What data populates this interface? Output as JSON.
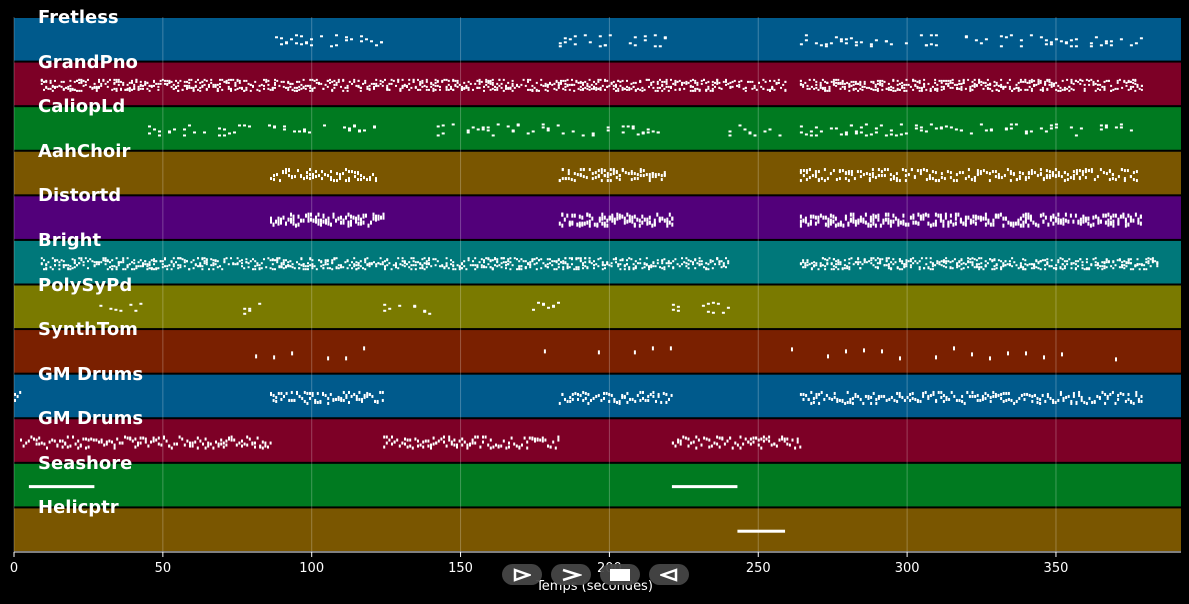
{
  "chart_data": {
    "type": "piano-roll",
    "xlabel": "Temps (secondes)",
    "xlim": [
      0,
      392
    ],
    "xticks": [
      0,
      50,
      100,
      150,
      200,
      250,
      300,
      350
    ],
    "grid": true,
    "tracks": [
      {
        "name": "Fretless",
        "color": "#005a8c",
        "segments": [
          [
            86,
            124
          ],
          [
            183,
            221
          ],
          [
            264,
            379
          ]
        ],
        "density": "sparse"
      },
      {
        "name": "GrandPno",
        "color": "#7d0026",
        "segments": [
          [
            9,
            259
          ],
          [
            264,
            379
          ]
        ],
        "density": "dense"
      },
      {
        "name": "CaliopLd",
        "color": "#007a20",
        "segments": [
          [
            45,
            122
          ],
          [
            142,
            219
          ],
          [
            240,
            258
          ],
          [
            264,
            377
          ]
        ],
        "density": "sparse"
      },
      {
        "name": "AahChoir",
        "color": "#7a5600",
        "segments": [
          [
            86,
            122
          ],
          [
            183,
            219
          ],
          [
            264,
            377
          ]
        ],
        "density": "medium"
      },
      {
        "name": "Distortd",
        "color": "#52007a",
        "segments": [
          [
            86,
            124
          ],
          [
            183,
            221
          ],
          [
            264,
            379
          ]
        ],
        "density": "blocks"
      },
      {
        "name": "Bright",
        "color": "#00787a",
        "segments": [
          [
            9,
            240
          ],
          [
            264,
            384
          ]
        ],
        "density": "dense"
      },
      {
        "name": "PolySyPd",
        "color": "#7a7a00",
        "segments": [
          [
            27,
            45
          ],
          [
            77,
            86
          ],
          [
            124,
            142
          ],
          [
            174,
            183
          ],
          [
            221,
            240
          ]
        ],
        "density": "sparse"
      },
      {
        "name": "SynthTom",
        "color": "#7a2000",
        "segments": [
          [
            81,
            122
          ],
          [
            178,
            221
          ],
          [
            261,
            379
          ]
        ],
        "density": "rare"
      },
      {
        "name": "GM Drums",
        "color": "#005a8c",
        "segments": [
          [
            0,
            2
          ],
          [
            86,
            124
          ],
          [
            183,
            221
          ],
          [
            264,
            379
          ]
        ],
        "density": "drums"
      },
      {
        "name": "GM Drums",
        "color": "#7d0026",
        "segments": [
          [
            2,
            86
          ],
          [
            124,
            183
          ],
          [
            221,
            264
          ]
        ],
        "density": "drums"
      },
      {
        "name": "Seashore",
        "color": "#007a20",
        "segments": [
          [
            5,
            27
          ],
          [
            221,
            243
          ]
        ],
        "density": "long"
      },
      {
        "name": "Helicptr",
        "color": "#7a5600",
        "segments": [
          [
            243,
            259
          ]
        ],
        "density": "long"
      }
    ]
  }
}
